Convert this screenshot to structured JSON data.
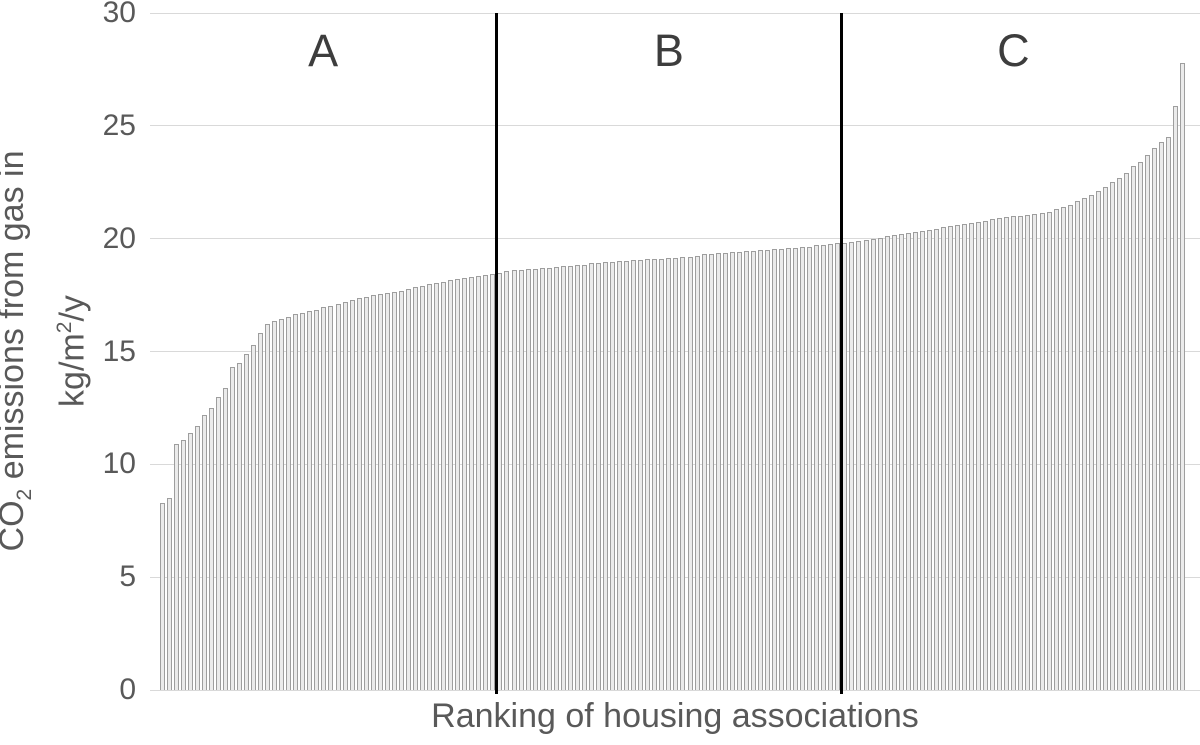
{
  "figure": {
    "background": "#ffffff",
    "axis_text_color": "#595959",
    "section_label_color": "#3d3d3d",
    "gridline_color": "#d9d9d9",
    "divider_color": "#000000",
    "bar_fill": "#ebebeb",
    "bar_edge": "#9e9e9e"
  },
  "chart_data": {
    "type": "bar",
    "title": "",
    "xlabel": "Ranking of housing associations",
    "ylabel_line1": {
      "pre": "CO",
      "sub": "2",
      "post": " emissions from gas in"
    },
    "ylabel_line2": {
      "pre": "kg/m",
      "sup": "2",
      "post": "/y"
    },
    "ylim": [
      0,
      30
    ],
    "yticks": [
      0,
      5,
      10,
      15,
      20,
      25,
      30
    ],
    "grid": "horizontal-only",
    "legend": "none",
    "x_tick_labels": "none (ranked individual housing associations)",
    "sections": [
      {
        "label": "A",
        "bar_count": 48
      },
      {
        "label": "B",
        "bar_count": 49
      },
      {
        "label": "C",
        "bar_count": 49
      }
    ],
    "values": [
      8.3,
      8.5,
      10.9,
      11.1,
      11.4,
      11.7,
      12.2,
      12.5,
      13.0,
      13.4,
      14.3,
      14.5,
      14.9,
      15.3,
      15.8,
      16.2,
      16.35,
      16.45,
      16.55,
      16.65,
      16.7,
      16.8,
      16.85,
      16.95,
      17.0,
      17.1,
      17.2,
      17.3,
      17.35,
      17.4,
      17.5,
      17.55,
      17.6,
      17.65,
      17.7,
      17.75,
      17.85,
      17.9,
      18.0,
      18.05,
      18.1,
      18.15,
      18.2,
      18.25,
      18.3,
      18.35,
      18.4,
      18.45,
      18.5,
      18.55,
      18.6,
      18.6,
      18.65,
      18.65,
      18.7,
      18.7,
      18.75,
      18.8,
      18.8,
      18.85,
      18.85,
      18.9,
      18.9,
      18.95,
      18.95,
      19.0,
      19.0,
      19.05,
      19.05,
      19.1,
      19.1,
      19.1,
      19.15,
      19.15,
      19.2,
      19.2,
      19.25,
      19.3,
      19.3,
      19.35,
      19.35,
      19.4,
      19.4,
      19.45,
      19.45,
      19.5,
      19.5,
      19.55,
      19.55,
      19.6,
      19.6,
      19.65,
      19.65,
      19.7,
      19.7,
      19.75,
      19.8,
      19.8,
      19.85,
      19.9,
      19.95,
      20.0,
      20.05,
      20.1,
      20.15,
      20.2,
      20.25,
      20.3,
      20.35,
      20.4,
      20.45,
      20.5,
      20.55,
      20.6,
      20.65,
      20.7,
      20.75,
      20.8,
      20.85,
      20.9,
      20.95,
      21.0,
      21.0,
      21.05,
      21.1,
      21.15,
      21.2,
      21.3,
      21.4,
      21.5,
      21.65,
      21.8,
      21.95,
      22.1,
      22.3,
      22.5,
      22.7,
      22.9,
      23.2,
      23.4,
      23.7,
      24.0,
      24.3,
      24.5,
      25.9,
      27.8
    ]
  }
}
